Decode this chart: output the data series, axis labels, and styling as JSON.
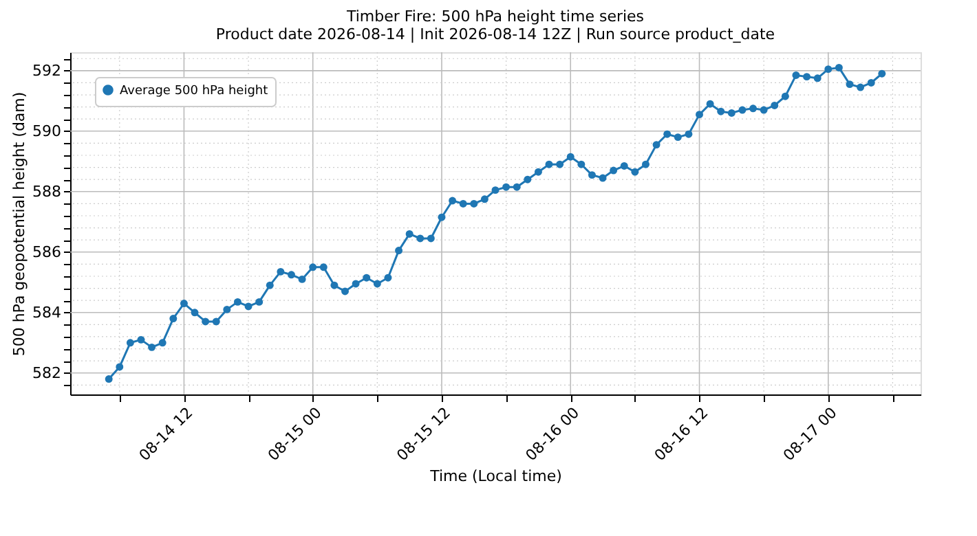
{
  "chart_data": {
    "type": "line",
    "title": "Timber Fire: 500 hPa height time series",
    "subtitle": "Product date 2026-08-14 | Init 2026-08-14 12Z | Run source product_date",
    "xlabel": "Time (Local time)",
    "ylabel": "500 hPa geopotential height (dam)",
    "x": [
      "2026-08-14T05:00",
      "2026-08-14T06:00",
      "2026-08-14T07:00",
      "2026-08-14T08:00",
      "2026-08-14T09:00",
      "2026-08-14T10:00",
      "2026-08-14T11:00",
      "2026-08-14T12:00",
      "2026-08-14T13:00",
      "2026-08-14T14:00",
      "2026-08-14T15:00",
      "2026-08-14T16:00",
      "2026-08-14T17:00",
      "2026-08-14T18:00",
      "2026-08-14T19:00",
      "2026-08-14T20:00",
      "2026-08-14T21:00",
      "2026-08-14T22:00",
      "2026-08-14T23:00",
      "2026-08-15T00:00",
      "2026-08-15T01:00",
      "2026-08-15T02:00",
      "2026-08-15T03:00",
      "2026-08-15T04:00",
      "2026-08-15T05:00",
      "2026-08-15T06:00",
      "2026-08-15T07:00",
      "2026-08-15T08:00",
      "2026-08-15T09:00",
      "2026-08-15T10:00",
      "2026-08-15T11:00",
      "2026-08-15T12:00",
      "2026-08-15T13:00",
      "2026-08-15T14:00",
      "2026-08-15T15:00",
      "2026-08-15T16:00",
      "2026-08-15T17:00",
      "2026-08-15T18:00",
      "2026-08-15T19:00",
      "2026-08-15T20:00",
      "2026-08-15T21:00",
      "2026-08-15T22:00",
      "2026-08-15T23:00",
      "2026-08-16T00:00",
      "2026-08-16T01:00",
      "2026-08-16T02:00",
      "2026-08-16T03:00",
      "2026-08-16T04:00",
      "2026-08-16T05:00",
      "2026-08-16T06:00",
      "2026-08-16T07:00",
      "2026-08-16T08:00",
      "2026-08-16T09:00",
      "2026-08-16T10:00",
      "2026-08-16T11:00",
      "2026-08-16T12:00",
      "2026-08-16T13:00",
      "2026-08-16T14:00",
      "2026-08-16T15:00",
      "2026-08-16T16:00",
      "2026-08-16T17:00",
      "2026-08-16T18:00",
      "2026-08-16T19:00",
      "2026-08-16T20:00",
      "2026-08-16T21:00",
      "2026-08-16T22:00",
      "2026-08-16T23:00",
      "2026-08-17T00:00",
      "2026-08-17T01:00",
      "2026-08-17T02:00",
      "2026-08-17T03:00",
      "2026-08-17T04:00",
      "2026-08-17T05:00"
    ],
    "series": [
      {
        "name": "Average 500 hPa height",
        "color": "#1f77b4",
        "values": [
          581.8,
          582.2,
          583.0,
          583.1,
          582.85,
          583.0,
          583.8,
          584.3,
          584.0,
          583.7,
          583.7,
          584.1,
          584.35,
          584.2,
          584.35,
          584.9,
          585.35,
          585.25,
          585.1,
          585.5,
          585.5,
          584.9,
          584.7,
          584.95,
          585.15,
          584.95,
          585.15,
          586.05,
          586.6,
          586.45,
          586.45,
          587.15,
          587.7,
          587.6,
          587.6,
          587.75,
          588.05,
          588.15,
          588.15,
          588.4,
          588.65,
          588.9,
          588.9,
          589.15,
          588.9,
          588.55,
          588.45,
          588.7,
          588.85,
          588.65,
          588.9,
          589.55,
          589.9,
          589.8,
          589.9,
          590.55,
          590.9,
          590.65,
          590.6,
          590.7,
          590.75,
          590.7,
          590.85,
          591.15,
          591.85,
          591.8,
          591.75,
          592.05,
          592.1,
          591.55,
          591.45,
          591.6,
          591.9
        ]
      }
    ],
    "xlim": [
      "2026-08-14T01:24",
      "2026-08-17T08:36"
    ],
    "xticks": [
      {
        "value": "2026-08-14T06:00",
        "label": null
      },
      {
        "value": "2026-08-14T12:00",
        "label": "08-14 12"
      },
      {
        "value": "2026-08-14T18:00",
        "label": null
      },
      {
        "value": "2026-08-15T00:00",
        "label": "08-15 00"
      },
      {
        "value": "2026-08-15T06:00",
        "label": null
      },
      {
        "value": "2026-08-15T12:00",
        "label": "08-15 12"
      },
      {
        "value": "2026-08-15T18:00",
        "label": null
      },
      {
        "value": "2026-08-16T00:00",
        "label": "08-16 00"
      },
      {
        "value": "2026-08-16T06:00",
        "label": null
      },
      {
        "value": "2026-08-16T12:00",
        "label": "08-16 12"
      },
      {
        "value": "2026-08-16T18:00",
        "label": null
      },
      {
        "value": "2026-08-17T00:00",
        "label": "08-17 00"
      },
      {
        "value": "2026-08-17T06:00",
        "label": null
      }
    ],
    "ylim": [
      581.29,
      592.61
    ],
    "yticks": [
      {
        "value": 581.6,
        "label": null
      },
      582,
      {
        "value": 582.4,
        "label": null
      },
      {
        "value": 582.8,
        "label": null
      },
      {
        "value": 583.2,
        "label": null
      },
      {
        "value": 583.6,
        "label": null
      },
      584,
      {
        "value": 584.4,
        "label": null
      },
      {
        "value": 584.8,
        "label": null
      },
      {
        "value": 585.2,
        "label": null
      },
      {
        "value": 585.6,
        "label": null
      },
      586,
      {
        "value": 586.4,
        "label": null
      },
      {
        "value": 586.8,
        "label": null
      },
      {
        "value": 587.2,
        "label": null
      },
      {
        "value": 587.6,
        "label": null
      },
      588,
      {
        "value": 588.4,
        "label": null
      },
      {
        "value": 588.8,
        "label": null
      },
      {
        "value": 589.2,
        "label": null
      },
      {
        "value": 589.6,
        "label": null
      },
      590,
      {
        "value": 590.4,
        "label": null
      },
      {
        "value": 590.8,
        "label": null
      },
      {
        "value": 591.2,
        "label": null
      },
      {
        "value": 591.6,
        "label": null
      },
      592,
      {
        "value": 592.4,
        "label": null
      }
    ],
    "grid": true,
    "legend": "top left",
    "marker": "circle",
    "line_style": "solid"
  }
}
